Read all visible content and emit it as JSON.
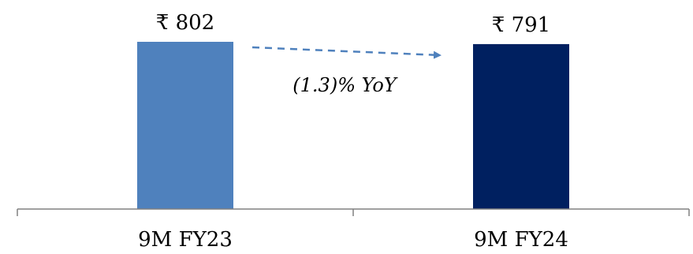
{
  "chart_data": {
    "type": "bar",
    "categories": [
      "9M FY23",
      "9M FY24"
    ],
    "values": [
      802,
      791
    ],
    "value_labels": [
      "₹ 802",
      "₹ 791"
    ],
    "bar_colors": [
      "#4f81bd",
      "#002060"
    ],
    "ylim": [
      0,
      802
    ],
    "grid": false,
    "legend": "none",
    "annotation": {
      "text": "(1.3)% YoY",
      "arrow_color": "#4f81bd",
      "arrow_style": "dashed"
    },
    "axis_color": "#808080"
  }
}
